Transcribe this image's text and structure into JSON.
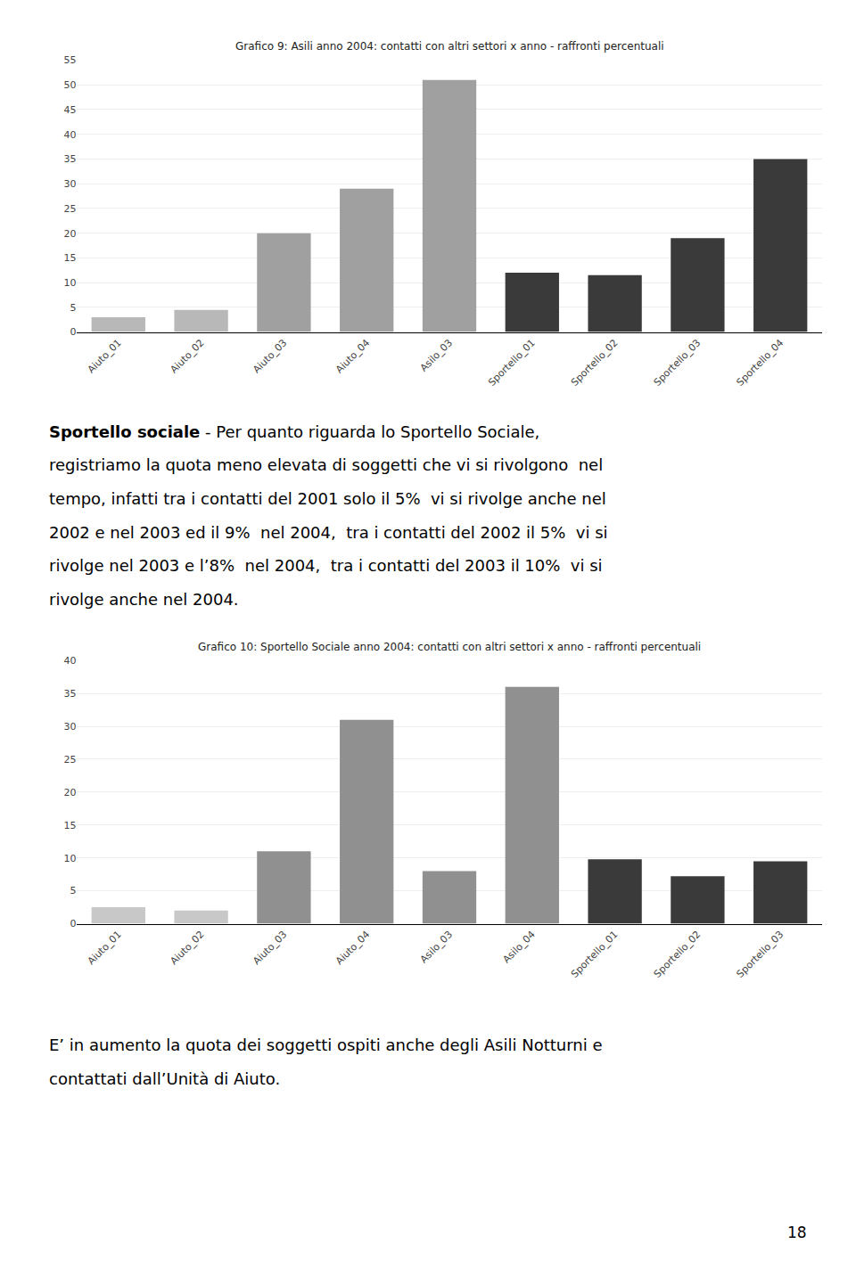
{
  "chart_data": [
    {
      "type": "bar",
      "title": "Grafico 9: Asili anno 2004: contatti con altri settori x anno - raffronti percentuali",
      "categories": [
        "Aiuto_01",
        "Aiuto_02",
        "Aiuto_03",
        "Aiuto_04",
        "Asilo_03",
        "Sportello_01",
        "Sportello_02",
        "Sportello_03",
        "Sportello_04"
      ],
      "values": [
        3,
        4.5,
        20,
        29,
        51,
        12,
        11.5,
        19,
        35
      ],
      "colors": [
        "#b8b8b8",
        "#b8b8b8",
        "#a0a0a0",
        "#a0a0a0",
        "#a0a0a0",
        "#3a3a3a",
        "#3a3a3a",
        "#3a3a3a",
        "#3a3a3a"
      ],
      "ylim": [
        0,
        55
      ],
      "yticks": [
        0,
        5,
        10,
        15,
        20,
        25,
        30,
        35,
        40,
        45,
        50,
        55
      ],
      "grid": true,
      "annotations": [
        "Sportello sociale",
        "- Per quanto riguarda lo Sportello Sociale,",
        "registriamo la quota meno elevata di soggetti che vi si rivolgono  nel",
        "tempo, infatti tra i contatti del 2001 solo il 5%  vi si rivolge anche nel",
        "2002 e nel 2003 ed il 9%  nel 2004,  tra i contatti del 2002 il 5%  vi si",
        "rivolge nel 2003 e l’8%  nel 2004,  tra i contatti del 2003 il 10%  vi si",
        "rivolge anche nel 2004."
      ]
    },
    {
      "type": "bar",
      "title": "Grafico 10: Sportello Sociale anno 2004: contatti con altri settori x anno - raffronti percentuali",
      "categories": [
        "Aiuto_01",
        "Aiuto_02",
        "Aiuto_03",
        "Aiuto_04",
        "Asilo_03",
        "Asilo_04",
        "Sportello_01",
        "Sportello_02",
        "Sportello_03"
      ],
      "values": [
        2.5,
        2.0,
        11,
        31,
        8,
        36,
        9.8,
        7.2,
        9.5
      ],
      "colors": [
        "#c8c8c8",
        "#c8c8c8",
        "#909090",
        "#909090",
        "#909090",
        "#909090",
        "#3a3a3a",
        "#3a3a3a",
        "#3a3a3a"
      ],
      "ylim": [
        0,
        40
      ],
      "yticks": [
        0,
        5,
        10,
        15,
        20,
        25,
        30,
        35,
        40
      ],
      "grid": true,
      "annotations": [
        "E’ in aumento la quota dei soggetti ospiti anche degli Asili Notturni e",
        "contattati dall’Unità di Aiuto.",
        "18"
      ]
    }
  ]
}
